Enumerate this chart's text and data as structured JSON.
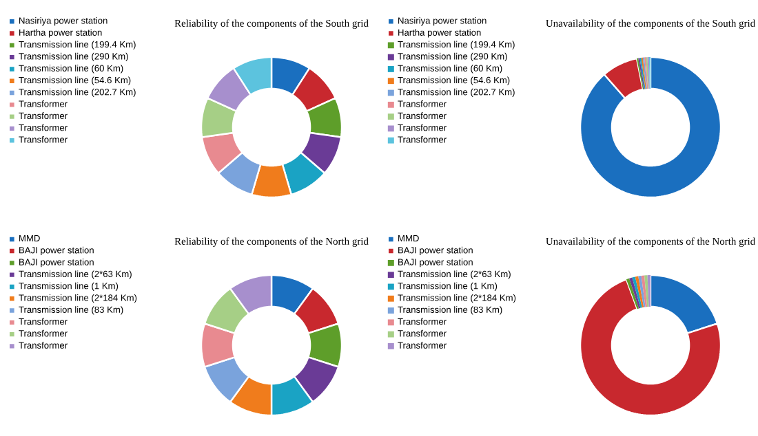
{
  "chart_data": [
    {
      "type": "donut",
      "title": "Reliability  of the components of the South grid",
      "legend": "left",
      "categories": [
        "Nasiriya power station",
        "Hartha power station",
        "Transmission line (199.4 Km)",
        "Transmission line (290 Km)",
        "Transmission line (60 Km)",
        "Transmission line (54.6 Km)",
        "Transmission line (202.7 Km)",
        "Transformer",
        "Transformer",
        "Transformer",
        "Transformer"
      ],
      "values": [
        9.09,
        9.09,
        9.09,
        9.09,
        9.09,
        9.09,
        9.09,
        9.09,
        9.09,
        9.09,
        9.09
      ],
      "colors": [
        "#1a6fbf",
        "#c8282e",
        "#5e9e2a",
        "#6a3b96",
        "#1aa3c4",
        "#f07c1c",
        "#7aa3dc",
        "#e88a90",
        "#a6cf86",
        "#a78fcd",
        "#5cc3de"
      ]
    },
    {
      "type": "donut",
      "title": "Unavailability  of the components of the South grid",
      "legend": "left",
      "categories": [
        "Nasiriya power station",
        "Hartha power station",
        "Transmission line (199.4 Km)",
        "Transmission line (290 Km)",
        "Transmission line (60 Km)",
        "Transmission line (54.6 Km)",
        "Transmission line (202.7 Km)",
        "Transformer",
        "Transformer",
        "Transformer",
        "Transformer"
      ],
      "values": [
        88.55,
        8.3,
        0.35,
        0.35,
        0.35,
        0.35,
        0.35,
        0.35,
        0.35,
        0.35,
        0.35
      ],
      "colors": [
        "#1a6fbf",
        "#c8282e",
        "#5e9e2a",
        "#6a3b96",
        "#1aa3c4",
        "#f07c1c",
        "#7aa3dc",
        "#e88a90",
        "#a6cf86",
        "#a78fcd",
        "#5cc3de"
      ]
    },
    {
      "type": "donut",
      "title": "Reliability of the components of the North grid",
      "legend": "left",
      "categories": [
        "MMD",
        "BAJI power station",
        "BAJI power station",
        "Transmission line (2*63 Km)",
        "Transmission line (1 Km)",
        "Transmission line (2*184 Km)",
        "Transmission line (83 Km)",
        "Transformer",
        "Transformer",
        "Transformer"
      ],
      "values": [
        10,
        10,
        10,
        10,
        10,
        10,
        10,
        10,
        10,
        10
      ],
      "colors": [
        "#1a6fbf",
        "#c8282e",
        "#5e9e2a",
        "#6a3b96",
        "#1aa3c4",
        "#f07c1c",
        "#7aa3dc",
        "#e88a90",
        "#a6cf86",
        "#a78fcd"
      ]
    },
    {
      "type": "donut",
      "title": "Unavailability of the components of the North grid",
      "legend": "left",
      "categories": [
        "MMD",
        "BAJI power station",
        "BAJI power station",
        "Transmission line (2*63 Km)",
        "Transmission line (1 Km)",
        "Transmission line (2*184 Km)",
        "Transmission line (83 Km)",
        "Transformer",
        "Transformer",
        "Transformer"
      ],
      "values": [
        20,
        74.4,
        0.7,
        0.7,
        0.7,
        0.7,
        0.7,
        0.7,
        0.7,
        0.7
      ],
      "colors": [
        "#1a6fbf",
        "#c8282e",
        "#5e9e2a",
        "#6a3b96",
        "#1aa3c4",
        "#f07c1c",
        "#7aa3dc",
        "#e88a90",
        "#a6cf86",
        "#a78fcd"
      ]
    }
  ]
}
